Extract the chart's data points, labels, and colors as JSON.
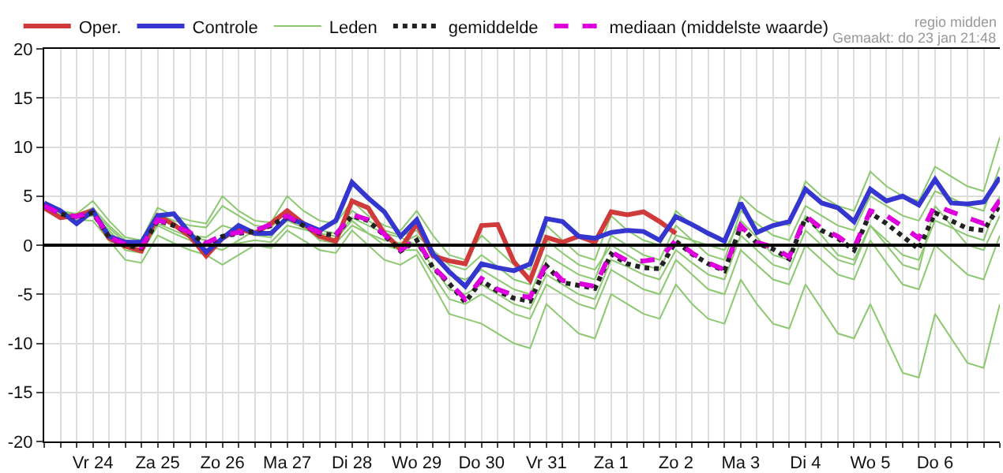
{
  "chart_data": {
    "type": "line",
    "annotations": [
      "regio midden",
      "Gemaakt: do 23 jan 21:48"
    ],
    "categories": [
      null,
      null,
      null,
      "Vr 24",
      null,
      null,
      null,
      "Za 25",
      null,
      null,
      null,
      "Zo 26",
      null,
      null,
      null,
      "Ma 27",
      null,
      null,
      null,
      "Di 28",
      null,
      null,
      null,
      "Wo 29",
      null,
      null,
      null,
      "Do 30",
      null,
      null,
      null,
      "Vr 31",
      null,
      null,
      null,
      "Za 1",
      null,
      null,
      null,
      "Zo 2",
      null,
      null,
      null,
      "Ma 3",
      null,
      null,
      null,
      "Di 4",
      null,
      null,
      null,
      "Wo 5",
      null,
      null,
      null,
      "Do 6",
      null,
      null,
      null,
      null
    ],
    "series": [
      {
        "name": "Oper.",
        "color": "#d03a3a",
        "line_style": "solid",
        "values": [
          3.8,
          2.8,
          3.0,
          3.5,
          0.7,
          -0.1,
          -0.6,
          3.0,
          2.1,
          0.9,
          -1.1,
          0.7,
          1.7,
          1.2,
          2.2,
          3.5,
          2.2,
          0.9,
          0.4,
          4.5,
          3.8,
          1.2,
          -0.4,
          2.2,
          -1.1,
          -1.6,
          -1.9,
          2.0,
          2.1,
          -1.7,
          -3.6,
          0.8,
          0.3,
          0.9,
          0.3,
          3.4,
          3.1,
          3.4,
          2.4,
          1.2,
          null,
          null,
          null,
          null,
          null,
          null,
          null,
          null,
          null,
          null,
          null,
          null,
          null,
          null,
          null,
          null,
          null,
          null,
          null,
          null
        ]
      },
      {
        "name": "Controle",
        "color": "#3535d0",
        "line_style": "solid",
        "values": [
          4.3,
          3.5,
          2.2,
          3.5,
          0.9,
          0.3,
          0.3,
          3.0,
          3.2,
          1.2,
          -0.7,
          0.7,
          2.0,
          1.2,
          1.2,
          2.8,
          2.2,
          1.5,
          2.5,
          6.4,
          4.8,
          3.4,
          0.9,
          2.6,
          -0.9,
          -2.7,
          -4.2,
          -1.9,
          -2.3,
          -2.6,
          -1.9,
          2.7,
          2.4,
          0.9,
          0.7,
          1.3,
          1.5,
          1.4,
          0.5,
          2.9,
          2.1,
          1.2,
          0.4,
          4.3,
          1.3,
          2.0,
          2.4,
          5.7,
          4.3,
          3.8,
          2.4,
          5.7,
          4.5,
          5.0,
          4.1,
          6.7,
          4.3,
          4.2,
          4.4,
          6.9
        ]
      },
      {
        "name": "Leden",
        "color": "#8cc870",
        "line_style": "solid",
        "values": [
          3.8,
          3.5,
          3.2,
          4.5,
          2.5,
          0.8,
          0.5,
          3.8,
          3.0,
          2.5,
          2.2,
          5.0,
          3.5,
          2.5,
          2.3,
          5.0,
          3.5,
          2.5,
          2.2,
          4.5,
          3.0,
          2.0,
          1.5,
          3.5,
          1.0,
          -1.0,
          -1.5,
          1.0,
          -0.5,
          -2.0,
          -2.5,
          2.0,
          0.5,
          -1.0,
          -1.5,
          3.0,
          1.5,
          0.5,
          0.0,
          3.5,
          2.0,
          1.0,
          0.5,
          5.0,
          3.5,
          2.5,
          2.0,
          6.5,
          5.0,
          4.0,
          3.5,
          7.5,
          6.0,
          5.0,
          4.5,
          8.0,
          7.0,
          6.0,
          5.5,
          11.0
        ]
      },
      {
        "color": "#8cc870",
        "line_style": "solid",
        "values": [
          3.6,
          3.0,
          2.6,
          2.5,
          0.5,
          -1.5,
          -1.8,
          1.0,
          0.2,
          -0.5,
          -1.0,
          -2.0,
          -1.0,
          0.0,
          -0.3,
          1.5,
          0.5,
          -0.5,
          -0.8,
          1.5,
          0.0,
          -1.5,
          -2.0,
          -1.0,
          -4.0,
          -7.0,
          -7.5,
          -8.0,
          -9.0,
          -10.0,
          -10.5,
          -6.0,
          -7.5,
          -9.0,
          -9.5,
          -5.0,
          -6.0,
          -7.0,
          -7.5,
          -4.0,
          -6.0,
          -7.5,
          -8.0,
          -3.5,
          -6.0,
          -8.0,
          -8.5,
          -4.0,
          -6.5,
          -9.0,
          -9.5,
          -6.0,
          -9.5,
          -13.0,
          -13.5,
          -7.0,
          -9.5,
          -12.0,
          -12.5,
          -6.0
        ]
      },
      {
        "color": "#8cc870",
        "line_style": "solid",
        "values": [
          3.9,
          3.3,
          3.0,
          3.5,
          1.8,
          0.2,
          0.0,
          2.8,
          2.0,
          1.0,
          0.8,
          2.0,
          1.5,
          1.0,
          0.8,
          3.0,
          2.2,
          1.5,
          1.2,
          3.5,
          2.5,
          1.5,
          1.0,
          1.5,
          -0.8,
          -3.0,
          -3.5,
          -2.5,
          -3.5,
          -4.5,
          -5.0,
          -1.0,
          -2.0,
          -3.0,
          -3.5,
          1.0,
          0.0,
          -1.0,
          -1.5,
          2.0,
          0.5,
          -1.0,
          -1.5,
          3.5,
          2.2,
          1.0,
          0.5,
          4.0,
          3.0,
          2.0,
          1.5,
          5.0,
          4.0,
          3.0,
          2.5,
          5.5,
          4.8,
          4.0,
          3.5,
          8.0
        ]
      },
      {
        "color": "#8cc870",
        "line_style": "solid",
        "values": [
          3.7,
          3.0,
          2.8,
          3.0,
          1.2,
          -0.5,
          -0.8,
          2.0,
          1.2,
          0.5,
          0.0,
          -0.5,
          0.5,
          1.5,
          1.2,
          2.5,
          1.8,
          1.0,
          0.6,
          2.5,
          1.2,
          0.0,
          -0.5,
          -0.5,
          -3.0,
          -5.5,
          -6.0,
          -5.0,
          -6.0,
          -7.0,
          -7.5,
          -4.0,
          -5.0,
          -6.0,
          -6.5,
          -2.5,
          -3.5,
          -4.5,
          -5.0,
          -1.5,
          -3.0,
          -4.5,
          -5.0,
          -0.5,
          -2.0,
          -3.5,
          -4.0,
          0.0,
          -1.5,
          -3.0,
          -3.5,
          0.5,
          -1.8,
          -4.0,
          -4.5,
          0.0,
          -1.5,
          -3.0,
          -3.5,
          1.0
        ]
      },
      {
        "color": "#8cc870",
        "line_style": "solid",
        "values": [
          4.1,
          3.4,
          3.1,
          3.8,
          2.0,
          0.5,
          0.2,
          3.2,
          2.5,
          2.0,
          1.8,
          4.0,
          3.0,
          2.0,
          1.8,
          3.5,
          2.0,
          0.5,
          0.2,
          2.0,
          1.2,
          0.5,
          0.2,
          1.0,
          -0.5,
          -2.0,
          -2.5,
          -1.0,
          -2.2,
          -3.5,
          -4.0,
          0.5,
          -0.8,
          -2.0,
          -2.5,
          0.0,
          -1.0,
          -2.0,
          -2.5,
          1.0,
          0.5,
          0.0,
          -0.5,
          2.5,
          0.8,
          -1.0,
          -1.5,
          3.0,
          1.0,
          -1.0,
          -1.5,
          2.0,
          0.0,
          -2.0,
          -2.5,
          4.0,
          2.0,
          0.0,
          -0.5,
          3.0
        ]
      },
      {
        "color": "#8cc870",
        "line_style": "solid",
        "values": [
          3.8,
          3.1,
          2.9,
          3.2,
          1.5,
          -0.2,
          -0.5,
          2.2,
          1.5,
          0.8,
          0.5,
          0.0,
          0.2,
          0.5,
          0.3,
          2.0,
          1.6,
          1.2,
          0.9,
          2.8,
          2.0,
          1.2,
          0.8,
          0.0,
          -2.2,
          -4.5,
          -5.0,
          -4.0,
          -5.0,
          -6.0,
          -6.5,
          -3.0,
          -4.0,
          -5.0,
          -5.5,
          -1.5,
          -2.2,
          -3.0,
          -3.5,
          -0.5,
          -1.8,
          -3.0,
          -3.5,
          1.0,
          -0.5,
          -2.0,
          -2.5,
          1.5,
          0.0,
          -1.5,
          -2.0,
          2.0,
          0.5,
          -1.0,
          -1.5,
          2.5,
          1.8,
          1.0,
          0.5,
          5.0
        ]
      },
      {
        "name": "gemiddelde",
        "color": "#222222",
        "line_style": "dotted",
        "values": [
          4.0,
          3.2,
          2.8,
          3.3,
          0.8,
          0.0,
          -0.3,
          2.5,
          2.0,
          1.2,
          0.1,
          0.9,
          1.2,
          1.4,
          2.0,
          2.9,
          2.0,
          1.2,
          1.0,
          3.0,
          2.5,
          1.0,
          -0.6,
          0.5,
          -2.3,
          -3.9,
          -5.8,
          -3.6,
          -4.7,
          -5.4,
          -5.7,
          -2.1,
          -3.8,
          -4.1,
          -4.4,
          -0.9,
          -1.9,
          -2.3,
          -2.4,
          0.4,
          -0.9,
          -1.9,
          -2.6,
          1.9,
          0.2,
          -0.4,
          -1.4,
          2.8,
          1.5,
          0.7,
          -0.5,
          3.3,
          2.2,
          0.9,
          -0.4,
          3.3,
          2.5,
          1.7,
          1.5,
          4.1
        ]
      },
      {
        "name": "mediaan (middelste waarde)",
        "color": "#dd00dd",
        "line_style": "dashed",
        "values": [
          4.0,
          3.2,
          2.9,
          3.4,
          0.8,
          0.1,
          -0.2,
          2.6,
          2.0,
          1.3,
          0.2,
          1.0,
          1.3,
          1.5,
          2.1,
          3.0,
          2.0,
          1.3,
          1.1,
          3.1,
          2.6,
          1.1,
          -0.5,
          0.6,
          -2.2,
          -3.8,
          -5.5,
          -3.4,
          -4.5,
          -5.1,
          -5.3,
          -1.9,
          -3.6,
          -3.9,
          -4.2,
          -0.7,
          -1.6,
          -1.6,
          -1.4,
          0.5,
          -0.8,
          -1.8,
          -2.5,
          2.0,
          0.3,
          -0.2,
          -1.2,
          3.0,
          1.7,
          0.9,
          -0.3,
          3.5,
          3.0,
          1.9,
          0.7,
          4.1,
          3.4,
          2.8,
          2.2,
          4.6
        ]
      }
    ],
    "ylim": [
      -20,
      20
    ],
    "yticks": [
      -20,
      -15,
      -10,
      -5,
      0,
      5,
      10,
      15,
      20
    ],
    "ref_lines": [
      {
        "axis": "y",
        "value": 0,
        "color": "#000000"
      }
    ],
    "grid": true,
    "legend": "top",
    "marker": "none"
  }
}
